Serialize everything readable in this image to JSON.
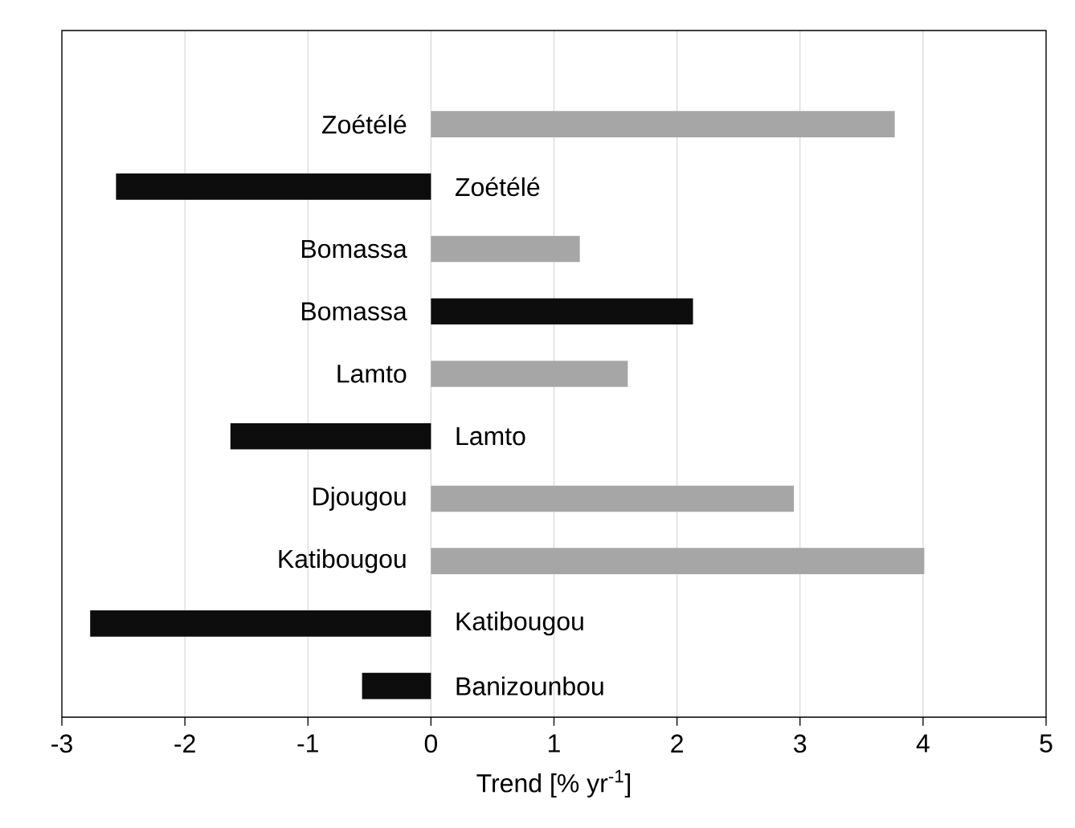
{
  "chart_data": {
    "type": "bar",
    "orientation": "horizontal",
    "xlabel": "Trend [% yr$^{-1}$]",
    "categories": [
      "Zoétélé",
      "Zoétélé",
      "Bomassa",
      "Bomassa",
      "Lamto",
      "Lamto",
      "Djougou",
      "Katibougou",
      "Katibougou",
      "Banizounbou"
    ],
    "values": [
      3.77,
      -2.56,
      1.21,
      2.13,
      1.6,
      -1.63,
      2.95,
      4.01,
      -2.77,
      -0.56
    ],
    "colors": [
      "#a6a6a6",
      "#0d0d0d",
      "#a6a6a6",
      "#0d0d0d",
      "#a6a6a6",
      "#0d0d0d",
      "#a6a6a6",
      "#a6a6a6",
      "#0d0d0d",
      "#0d0d0d"
    ],
    "xlim": [
      -3,
      5
    ],
    "xticks": [
      -3,
      -2,
      -1,
      0,
      1,
      2,
      3,
      4,
      5
    ],
    "grid": "x"
  }
}
